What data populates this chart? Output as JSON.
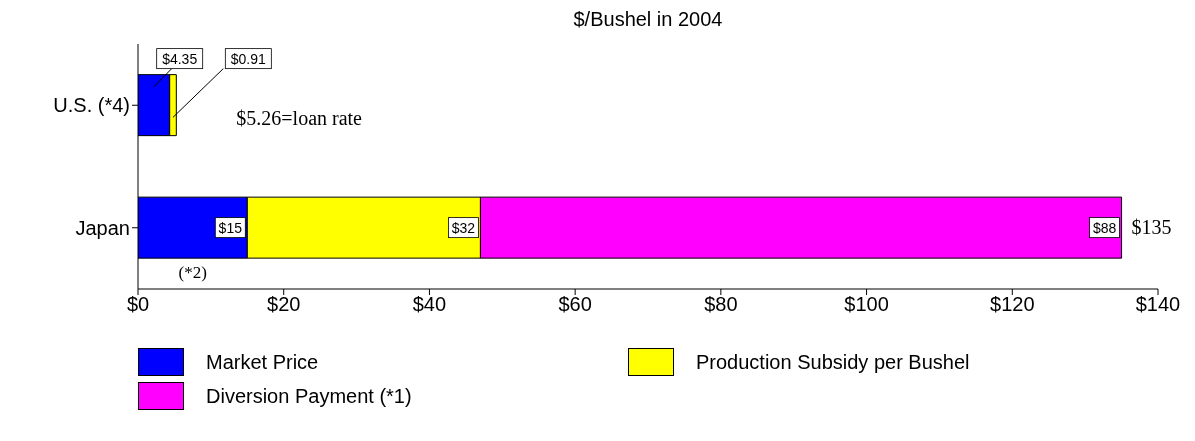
{
  "chart_data": {
    "type": "bar",
    "orientation": "horizontal",
    "stacked": true,
    "title": "$/Bushel in 2004",
    "categories": [
      "U.S. (*4)",
      "Japan"
    ],
    "series": [
      {
        "name": "Market Price",
        "color": "#0000ff",
        "values": [
          4.35,
          15
        ],
        "value_labels": [
          "$4.35",
          "$15"
        ]
      },
      {
        "name": "Production Subsidy per Bushel",
        "color": "#ffff00",
        "values": [
          0.91,
          32
        ],
        "value_labels": [
          "$0.91",
          "$32"
        ]
      },
      {
        "name": "Diversion Payment (*1)",
        "color": "#ff00ff",
        "values": [
          null,
          88
        ],
        "value_labels": [
          null,
          "$88"
        ]
      }
    ],
    "totals": [
      "$5.26=loan rate",
      "$135"
    ],
    "annotations": [
      "(*2)"
    ],
    "xlim": [
      0,
      140
    ],
    "xticks": [
      {
        "value": 0,
        "label": "$0"
      },
      {
        "value": 20,
        "label": "$20"
      },
      {
        "value": 40,
        "label": "$40"
      },
      {
        "value": 60,
        "label": "$60"
      },
      {
        "value": 80,
        "label": "$80"
      },
      {
        "value": 100,
        "label": "$100"
      },
      {
        "value": 120,
        "label": "$120"
      },
      {
        "value": 140,
        "label": "$140"
      }
    ],
    "grid": false,
    "legend": "bottom"
  }
}
